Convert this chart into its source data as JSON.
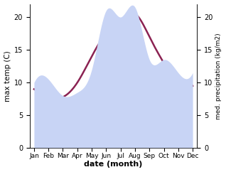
{
  "months": [
    "Jan",
    "Feb",
    "Mar",
    "Apr",
    "May",
    "Jun",
    "Jul",
    "Aug",
    "Sep",
    "Oct",
    "Nov",
    "Dec"
  ],
  "temp": [
    9.0,
    7.8,
    7.8,
    10.0,
    14.0,
    17.5,
    19.5,
    20.5,
    17.0,
    13.0,
    10.0,
    9.5
  ],
  "precip": [
    10.0,
    10.5,
    8.0,
    8.5,
    12.0,
    21.0,
    20.0,
    21.5,
    13.5,
    13.5,
    11.5,
    11.5
  ],
  "temp_color": "#8B2252",
  "precip_fill_color": "#c8d4f5",
  "ylim_left": [
    0,
    22
  ],
  "ylim_right": [
    0,
    22
  ],
  "yticks_left": [
    0,
    5,
    10,
    15,
    20
  ],
  "yticks_right": [
    0,
    5,
    10,
    15,
    20
  ],
  "ylabel_left": "max temp (C)",
  "ylabel_right": "med. precipitation (kg/m2)",
  "xlabel": "date (month)",
  "bg_color": "#ffffff",
  "line_width": 1.8
}
